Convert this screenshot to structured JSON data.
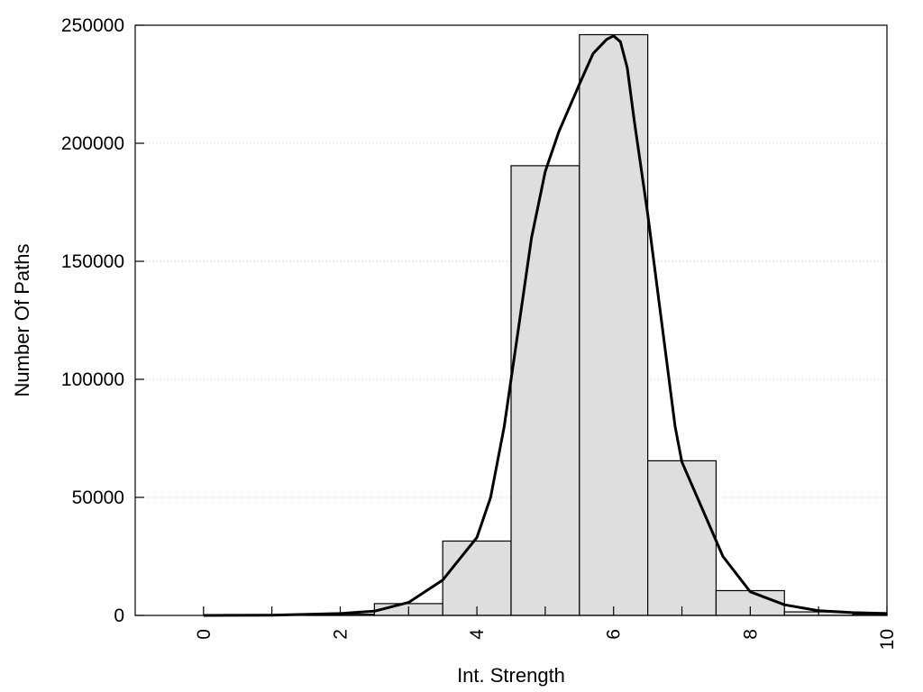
{
  "chart_data": {
    "type": "bar",
    "xlabel": "Int. Strength",
    "ylabel": "Number Of Paths",
    "xlim": [
      -1,
      10
    ],
    "ylim": [
      0,
      250000
    ],
    "x_ticks": [
      0,
      2,
      4,
      6,
      8,
      10
    ],
    "y_ticks": [
      0,
      50000,
      100000,
      150000,
      200000,
      250000
    ],
    "grid": "horizontal-dotted",
    "bins": [
      {
        "x": 0,
        "value": 0
      },
      {
        "x": 1,
        "value": 0
      },
      {
        "x": 2,
        "value": 500
      },
      {
        "x": 3,
        "value": 5000
      },
      {
        "x": 4,
        "value": 31500
      },
      {
        "x": 5,
        "value": 190500
      },
      {
        "x": 6,
        "value": 246000
      },
      {
        "x": 7,
        "value": 65500
      },
      {
        "x": 8,
        "value": 10500
      },
      {
        "x": 9,
        "value": 1500
      },
      {
        "x": 10,
        "value": 500
      }
    ],
    "fit_curve": [
      [
        0,
        0
      ],
      [
        1,
        100
      ],
      [
        2,
        800
      ],
      [
        2.5,
        1800
      ],
      [
        3,
        5500
      ],
      [
        3.5,
        15000
      ],
      [
        4,
        33000
      ],
      [
        4.2,
        50000
      ],
      [
        4.4,
        80000
      ],
      [
        4.6,
        120000
      ],
      [
        4.8,
        160000
      ],
      [
        5,
        188000
      ],
      [
        5.2,
        205000
      ],
      [
        5.5,
        225000
      ],
      [
        5.7,
        238000
      ],
      [
        5.9,
        244000
      ],
      [
        6,
        245500
      ],
      [
        6.1,
        243000
      ],
      [
        6.2,
        232000
      ],
      [
        6.3,
        210000
      ],
      [
        6.5,
        170000
      ],
      [
        6.7,
        125000
      ],
      [
        6.9,
        80000
      ],
      [
        7,
        65000
      ],
      [
        7.3,
        45000
      ],
      [
        7.6,
        25000
      ],
      [
        8,
        10000
      ],
      [
        8.5,
        4500
      ],
      [
        9,
        2000
      ],
      [
        9.5,
        1200
      ],
      [
        10,
        800
      ]
    ]
  }
}
